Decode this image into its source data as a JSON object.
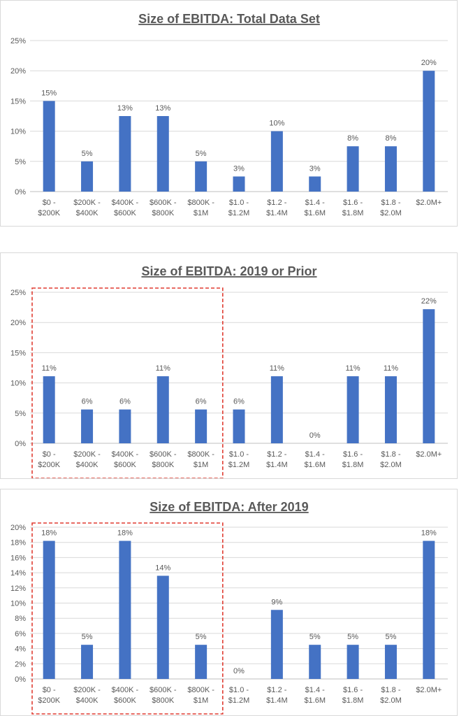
{
  "chart_data": [
    {
      "type": "bar",
      "title": "Size of EBITDA: Total Data Set",
      "categories": [
        [
          "$0 -",
          "$200K"
        ],
        [
          "$200K -",
          "$400K"
        ],
        [
          "$400K -",
          "$600K"
        ],
        [
          "$600K -",
          "$800K"
        ],
        [
          "$800K -",
          "$1M"
        ],
        [
          "$1.0 -",
          "$1.2M"
        ],
        [
          "$1.2 -",
          "$1.4M"
        ],
        [
          "$1.4 -",
          "$1.6M"
        ],
        [
          "$1.6 -",
          "$1.8M"
        ],
        [
          "$1.8 -",
          "$2.0M"
        ],
        [
          "$2.0M+"
        ]
      ],
      "values": [
        15,
        5,
        12.5,
        12.5,
        5,
        2.5,
        10,
        2.5,
        7.5,
        7.5,
        20
      ],
      "data_labels": [
        "15%",
        "5%",
        "13%",
        "13%",
        "5%",
        "3%",
        "10%",
        "3%",
        "8%",
        "8%",
        "20%"
      ],
      "yticks": [
        "0%",
        "5%",
        "10%",
        "15%",
        "20%",
        "25%"
      ],
      "ylim": [
        0,
        25
      ],
      "grid": true,
      "highlight_box": false,
      "bar_color": "#4472c4"
    },
    {
      "type": "bar",
      "title": "Size of EBITDA: 2019 or Prior",
      "categories": [
        [
          "$0 -",
          "$200K"
        ],
        [
          "$200K -",
          "$400K"
        ],
        [
          "$400K -",
          "$600K"
        ],
        [
          "$600K -",
          "$800K"
        ],
        [
          "$800K -",
          "$1M"
        ],
        [
          "$1.0 -",
          "$1.2M"
        ],
        [
          "$1.2 -",
          "$1.4M"
        ],
        [
          "$1.4 -",
          "$1.6M"
        ],
        [
          "$1.6 -",
          "$1.8M"
        ],
        [
          "$1.8 -",
          "$2.0M"
        ],
        [
          "$2.0M+"
        ]
      ],
      "values": [
        11.1,
        5.6,
        5.6,
        11.1,
        5.6,
        5.6,
        11.1,
        0,
        11.1,
        11.1,
        22.2
      ],
      "data_labels": [
        "11%",
        "6%",
        "6%",
        "11%",
        "6%",
        "6%",
        "11%",
        "0%",
        "11%",
        "11%",
        "22%"
      ],
      "yticks": [
        "0%",
        "5%",
        "10%",
        "15%",
        "20%",
        "25%"
      ],
      "ylim": [
        0,
        25
      ],
      "grid": true,
      "highlight_box": true,
      "highlight_color": "#e03c31",
      "bar_color": "#4472c4"
    },
    {
      "type": "bar",
      "title": "Size of EBITDA: After 2019",
      "categories": [
        [
          "$0 -",
          "$200K"
        ],
        [
          "$200K -",
          "$400K"
        ],
        [
          "$400K -",
          "$600K"
        ],
        [
          "$600K -",
          "$800K"
        ],
        [
          "$800K -",
          "$1M"
        ],
        [
          "$1.0 -",
          "$1.2M"
        ],
        [
          "$1.2 -",
          "$1.4M"
        ],
        [
          "$1.4 -",
          "$1.6M"
        ],
        [
          "$1.6 -",
          "$1.8M"
        ],
        [
          "$1.8 -",
          "$2.0M"
        ],
        [
          "$2.0M+"
        ]
      ],
      "values": [
        18.2,
        4.5,
        18.2,
        13.6,
        4.5,
        0,
        9.1,
        4.5,
        4.5,
        4.5,
        18.2
      ],
      "data_labels": [
        "18%",
        "5%",
        "18%",
        "14%",
        "5%",
        "0%",
        "9%",
        "5%",
        "5%",
        "5%",
        "18%"
      ],
      "yticks": [
        "0%",
        "2%",
        "4%",
        "6%",
        "8%",
        "10%",
        "12%",
        "14%",
        "16%",
        "18%",
        "20%"
      ],
      "ylim": [
        0,
        20
      ],
      "grid": true,
      "highlight_box": true,
      "highlight_color": "#e03c31",
      "bar_color": "#4472c4"
    }
  ]
}
